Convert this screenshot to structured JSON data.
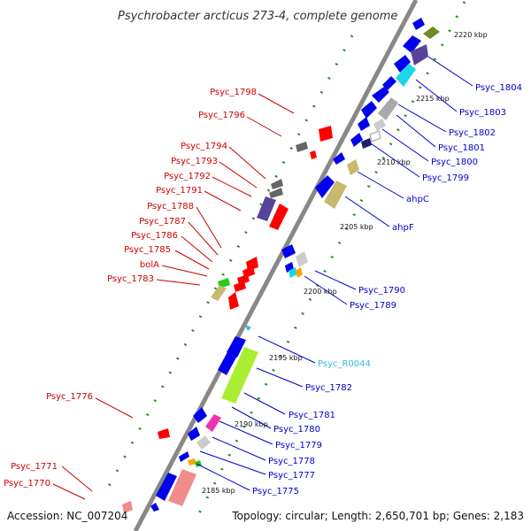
{
  "title": "Psychrobacter arcticus 273-4, complete genome",
  "footer": {
    "accession": "Accession: NC_007204",
    "summary": "Topology: circular; Length: 2,650,701 bp; Genes: 2,183"
  },
  "colors": {
    "backbone": "#888888",
    "ticks": "#2e8b2e",
    "left_labels": "#cc0000",
    "right_labels": "#0000cc",
    "rna_label": "#33bbdd"
  },
  "kbp_markers": [
    "2220 kbp",
    "2215 kbp",
    "2210 kbp",
    "2205 kbp",
    "2200 kbp",
    "2195 kbp",
    "2190 kbp",
    "2185 kbp"
  ],
  "genes_left": [
    "Psyc_1798",
    "Psyc_1796",
    "Psyc_1794",
    "Psyc_1793",
    "Psyc_1792",
    "Psyc_1791",
    "Psyc_1788",
    "Psyc_1787",
    "Psyc_1786",
    "Psyc_1785",
    "bolA",
    "Psyc_1783",
    "Psyc_1776",
    "Psyc_1771",
    "Psyc_1770"
  ],
  "genes_right": [
    "Psyc_1804",
    "Psyc_1803",
    "Psyc_1802",
    "Psyc_1801",
    "Psyc_1800",
    "Psyc_1799",
    "ahpC",
    "ahpF",
    "Psyc_1790",
    "Psyc_1789",
    "Psyc_R0044",
    "Psyc_1782",
    "Psyc_1781",
    "Psyc_1780",
    "Psyc_1779",
    "Psyc_1778",
    "Psyc_1777",
    "Psyc_1775"
  ]
}
